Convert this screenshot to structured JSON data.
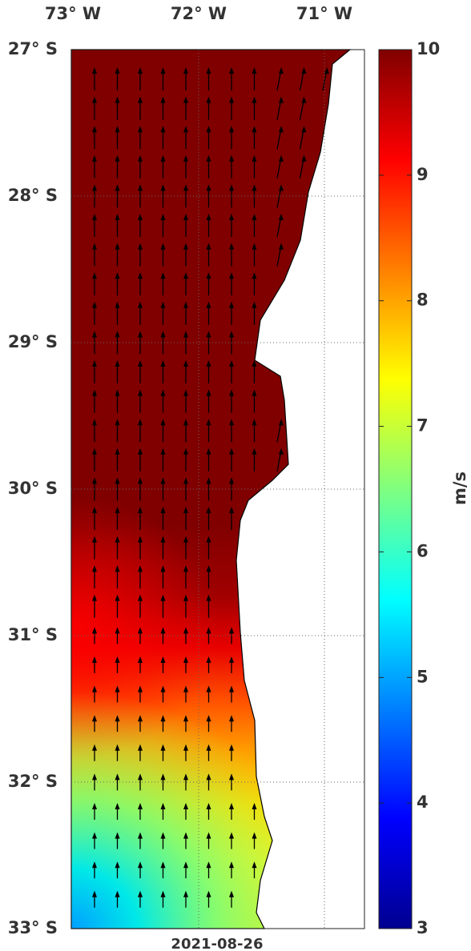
{
  "map": {
    "lon_labels": [
      "73° W",
      "72° W",
      "71° W"
    ],
    "lat_labels": [
      "27° S",
      "28° S",
      "29° S",
      "30° S",
      "31° S",
      "32° S",
      "33° S"
    ],
    "date": "2021-08-26",
    "colorbar": {
      "label": "m/s",
      "lim": [
        3,
        10
      ],
      "ticks": [
        3,
        4,
        5,
        6,
        7,
        8,
        9,
        10
      ]
    }
  }
}
